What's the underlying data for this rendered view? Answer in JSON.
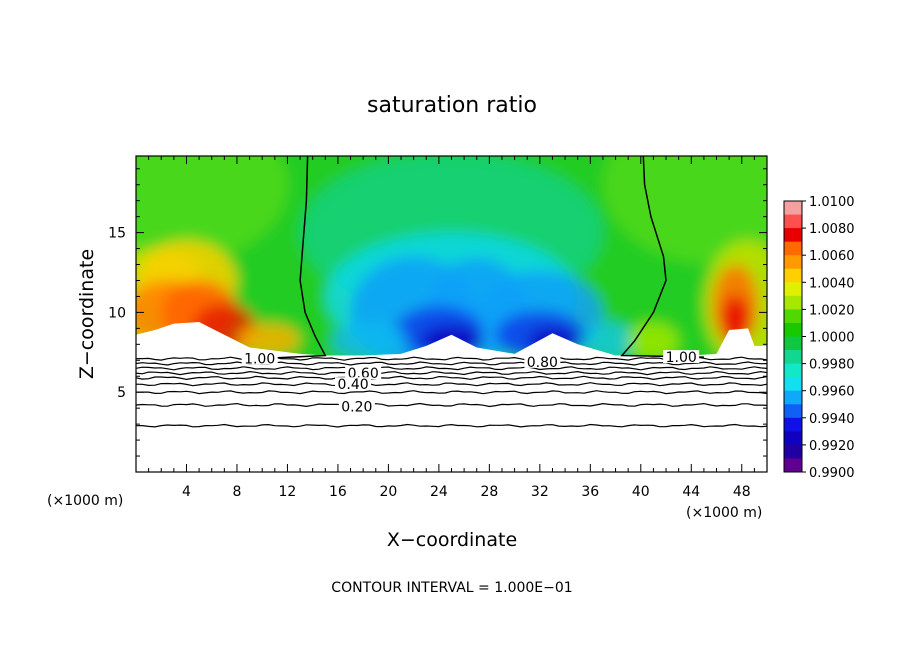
{
  "chart_data": {
    "type": "heatmap",
    "title": "saturation ratio",
    "xlabel": "X−coordinate",
    "ylabel": "Z−coordinate",
    "x_unit": "(×1000 m)",
    "y_unit": "(×1000 m)",
    "x_ticks": [
      4,
      8,
      12,
      16,
      20,
      24,
      28,
      32,
      36,
      40,
      44,
      48
    ],
    "y_ticks": [
      5,
      10,
      15
    ],
    "xlim": [
      0,
      50
    ],
    "ylim": [
      0,
      19.8
    ],
    "footer": "CONTOUR INTERVAL = 1.000E−01",
    "colorbar": {
      "levels": [
        "1.0100",
        "1.0080",
        "1.0060",
        "1.0040",
        "1.0020",
        "1.0000",
        "0.9980",
        "0.9960",
        "0.9940",
        "0.9920",
        "0.9900"
      ],
      "min": 0.99,
      "max": 1.01,
      "colors": [
        "#f4a0a0",
        "#ff5050",
        "#e80000",
        "#ff6a00",
        "#ff9a00",
        "#ffd000",
        "#e0f000",
        "#a8e800",
        "#50d800",
        "#18c800",
        "#10c840",
        "#10d890",
        "#10e8c8",
        "#10e0f0",
        "#10a8f8",
        "#1060f8",
        "#1010e8",
        "#1000c0",
        "#2000a0",
        "#600090"
      ]
    },
    "contour_labels": [
      {
        "text": "1.00",
        "x": 9.8,
        "y": 7.1
      },
      {
        "text": "1.00",
        "x": 43.2,
        "y": 7.2
      },
      {
        "text": "0.80",
        "x": 32.2,
        "y": 6.9
      },
      {
        "text": "0.60",
        "x": 18.0,
        "y": 6.2
      },
      {
        "text": "0.40",
        "x": 17.2,
        "y": 5.5
      },
      {
        "text": "0.20",
        "x": 17.5,
        "y": 4.1
      }
    ],
    "contour_levels_below": [
      {
        "level": 0.2,
        "z": 4.2
      },
      {
        "level": 0.3,
        "z": 5.0
      },
      {
        "level": 0.4,
        "z": 5.5
      },
      {
        "level": 0.5,
        "z": 5.9
      },
      {
        "level": 0.6,
        "z": 6.2
      },
      {
        "level": 0.7,
        "z": 6.5
      },
      {
        "level": 0.8,
        "z": 6.8
      },
      {
        "level": 0.9,
        "z": 7.1
      }
    ],
    "contour_low": {
      "z": 2.9
    }
  }
}
